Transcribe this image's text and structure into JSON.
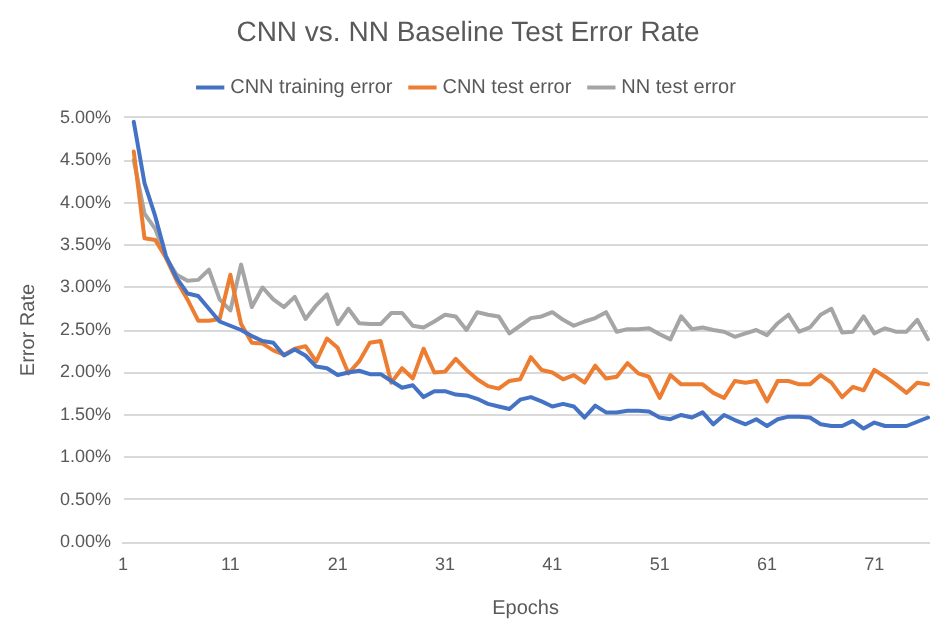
{
  "chart_data": {
    "type": "line",
    "title": "CNN vs. NN Baseline Test Error Rate",
    "xlabel": "Epochs",
    "ylabel": "Error Rate",
    "categories": [
      "1",
      null,
      null,
      null,
      null,
      null,
      null,
      null,
      null,
      null,
      "11",
      null,
      null,
      null,
      null,
      null,
      null,
      null,
      null,
      null,
      "21",
      null,
      null,
      null,
      null,
      null,
      null,
      null,
      null,
      null,
      "31",
      null,
      null,
      null,
      null,
      null,
      null,
      null,
      null,
      null,
      "41",
      null,
      null,
      null,
      null,
      null,
      null,
      null,
      null,
      null,
      "51",
      null,
      null,
      null,
      null,
      null,
      null,
      null,
      null,
      null,
      "61",
      null,
      null,
      null,
      null,
      null,
      null,
      null,
      null,
      null,
      "71",
      null,
      null,
      null,
      null,
      null
    ],
    "series": [
      {
        "name": "CNN training error",
        "color": "#4472c4",
        "values": [
          null,
          4.95,
          4.23,
          3.84,
          3.37,
          3.11,
          2.93,
          2.9,
          2.75,
          2.6,
          2.55,
          2.5,
          2.43,
          2.37,
          2.35,
          2.2,
          2.27,
          2.2,
          2.07,
          2.05,
          1.97,
          2.0,
          2.02,
          1.98,
          1.98,
          1.9,
          1.82,
          1.85,
          1.71,
          1.78,
          1.78,
          1.74,
          1.73,
          1.69,
          1.63,
          1.6,
          1.57,
          1.68,
          1.71,
          1.66,
          1.6,
          1.63,
          1.6,
          1.47,
          1.61,
          1.53,
          1.53,
          1.55,
          1.55,
          1.54,
          1.47,
          1.45,
          1.5,
          1.47,
          1.53,
          1.39,
          1.5,
          1.44,
          1.39,
          1.45,
          1.37,
          1.45,
          1.48,
          1.48,
          1.47,
          1.39,
          1.37,
          1.37,
          1.43,
          1.34,
          1.41,
          1.37,
          1.37,
          1.37,
          1.42,
          1.47
        ]
      },
      {
        "name": "CNN test error",
        "color": "#ed7d31",
        "values": [
          null,
          4.6,
          3.58,
          3.56,
          3.35,
          3.08,
          2.86,
          2.61,
          2.61,
          2.63,
          3.15,
          2.57,
          2.35,
          2.34,
          2.26,
          2.21,
          2.28,
          2.31,
          2.13,
          2.4,
          2.29,
          1.99,
          2.13,
          2.35,
          2.37,
          1.88,
          2.05,
          1.93,
          2.28,
          2.0,
          2.01,
          2.16,
          2.03,
          1.92,
          1.84,
          1.81,
          1.9,
          1.92,
          2.18,
          2.03,
          2.0,
          1.92,
          1.97,
          1.88,
          2.08,
          1.93,
          1.95,
          2.11,
          1.99,
          1.95,
          1.7,
          1.97,
          1.86,
          1.86,
          1.86,
          1.76,
          1.7,
          1.9,
          1.88,
          1.9,
          1.66,
          1.9,
          1.9,
          1.86,
          1.86,
          1.97,
          1.88,
          1.71,
          1.83,
          1.79,
          2.03,
          1.95,
          1.86,
          1.76,
          1.88,
          1.86
        ]
      },
      {
        "name": "NN test error",
        "color": "#a5a5a5",
        "values": [
          null,
          4.5,
          3.87,
          3.69,
          3.35,
          3.15,
          3.08,
          3.09,
          3.21,
          2.86,
          2.73,
          3.27,
          2.77,
          3.0,
          2.86,
          2.77,
          2.89,
          2.63,
          2.79,
          2.92,
          2.57,
          2.75,
          2.58,
          2.57,
          2.57,
          2.7,
          2.7,
          2.55,
          2.53,
          2.6,
          2.68,
          2.66,
          2.5,
          2.71,
          2.68,
          2.66,
          2.46,
          2.55,
          2.64,
          2.66,
          2.71,
          2.62,
          2.55,
          2.6,
          2.64,
          2.71,
          2.48,
          2.51,
          2.51,
          2.52,
          2.45,
          2.39,
          2.66,
          2.51,
          2.53,
          2.5,
          2.48,
          2.42,
          2.46,
          2.5,
          2.44,
          2.58,
          2.68,
          2.48,
          2.53,
          2.68,
          2.75,
          2.47,
          2.48,
          2.66,
          2.46,
          2.52,
          2.48,
          2.48,
          2.62,
          2.39
        ]
      }
    ],
    "ylim": [
      0,
      5
    ],
    "yticks": [
      {
        "value": 0,
        "label": "0.00%"
      },
      {
        "value": 0.5,
        "label": "0.50%"
      },
      {
        "value": 1,
        "label": "1.00%"
      },
      {
        "value": 1.5,
        "label": "1.50%"
      },
      {
        "value": 2,
        "label": "2.00%"
      },
      {
        "value": 2.5,
        "label": "2.50%"
      },
      {
        "value": 3,
        "label": "3.00%"
      },
      {
        "value": 3.5,
        "label": "3.50%"
      },
      {
        "value": 4,
        "label": "4.00%"
      },
      {
        "value": 4.5,
        "label": "4.50%"
      },
      {
        "value": 5,
        "label": "5.00%"
      }
    ],
    "grid": "y",
    "legend": "top",
    "marker": "none",
    "line_style": "solid"
  }
}
